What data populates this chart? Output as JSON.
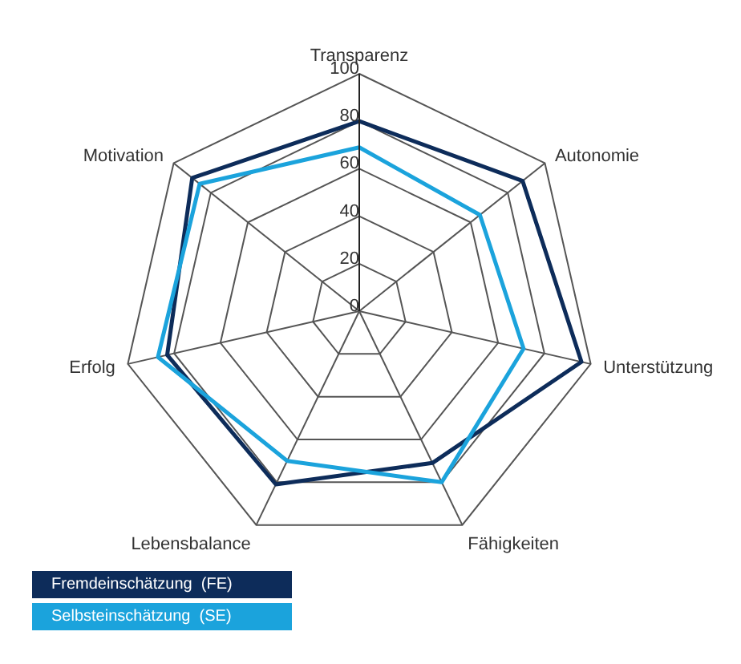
{
  "chart_data": {
    "type": "radar",
    "categories": [
      "Transparenz",
      "Autonomie",
      "Unterstützung",
      "Fähigkeiten",
      "Lebensbalance",
      "Erfolg",
      "Motivation"
    ],
    "series": [
      {
        "name": "Fremdeinschätzung  (FE)",
        "color": "#0d2c5a",
        "values": [
          80,
          88,
          96,
          71,
          81,
          83,
          90
        ]
      },
      {
        "name": "Selbsteinschätzung  (SE)",
        "color": "#1ba3dc",
        "values": [
          69,
          65,
          71,
          80,
          70,
          87,
          86
        ]
      }
    ],
    "ylim": [
      0,
      100
    ],
    "yticks": [
      0,
      20,
      40,
      60,
      80,
      100
    ],
    "grid": true,
    "legend": "bottom left",
    "marker": "none"
  }
}
